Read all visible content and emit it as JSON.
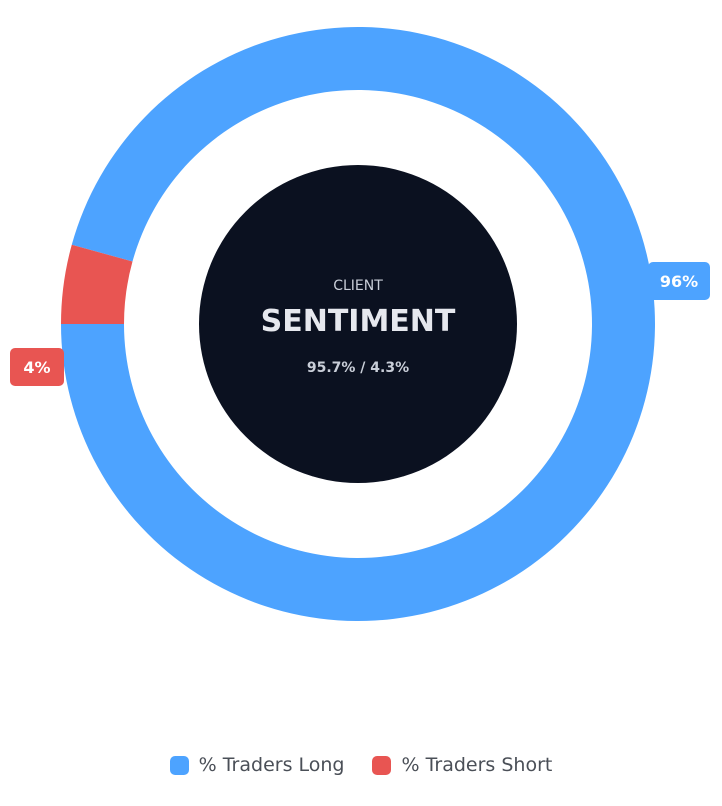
{
  "chart_data": {
    "type": "pie",
    "variant": "donut",
    "categories": [
      "% Traders Long",
      "% Traders Short"
    ],
    "values": [
      95.7,
      4.3
    ],
    "data_labels": [
      "96%",
      "4%"
    ],
    "colors": [
      "#4da3ff",
      "#e85552"
    ],
    "legend_position": "bottom"
  },
  "center": {
    "eyebrow": "CLIENT",
    "title": "SENTIMENT",
    "ratio": "95.7% / 4.3%",
    "background": "#0b1120"
  },
  "legend": {
    "items": [
      {
        "label": "% Traders Long",
        "color": "#4da3ff"
      },
      {
        "label": "% Traders Short",
        "color": "#e85552"
      }
    ]
  }
}
